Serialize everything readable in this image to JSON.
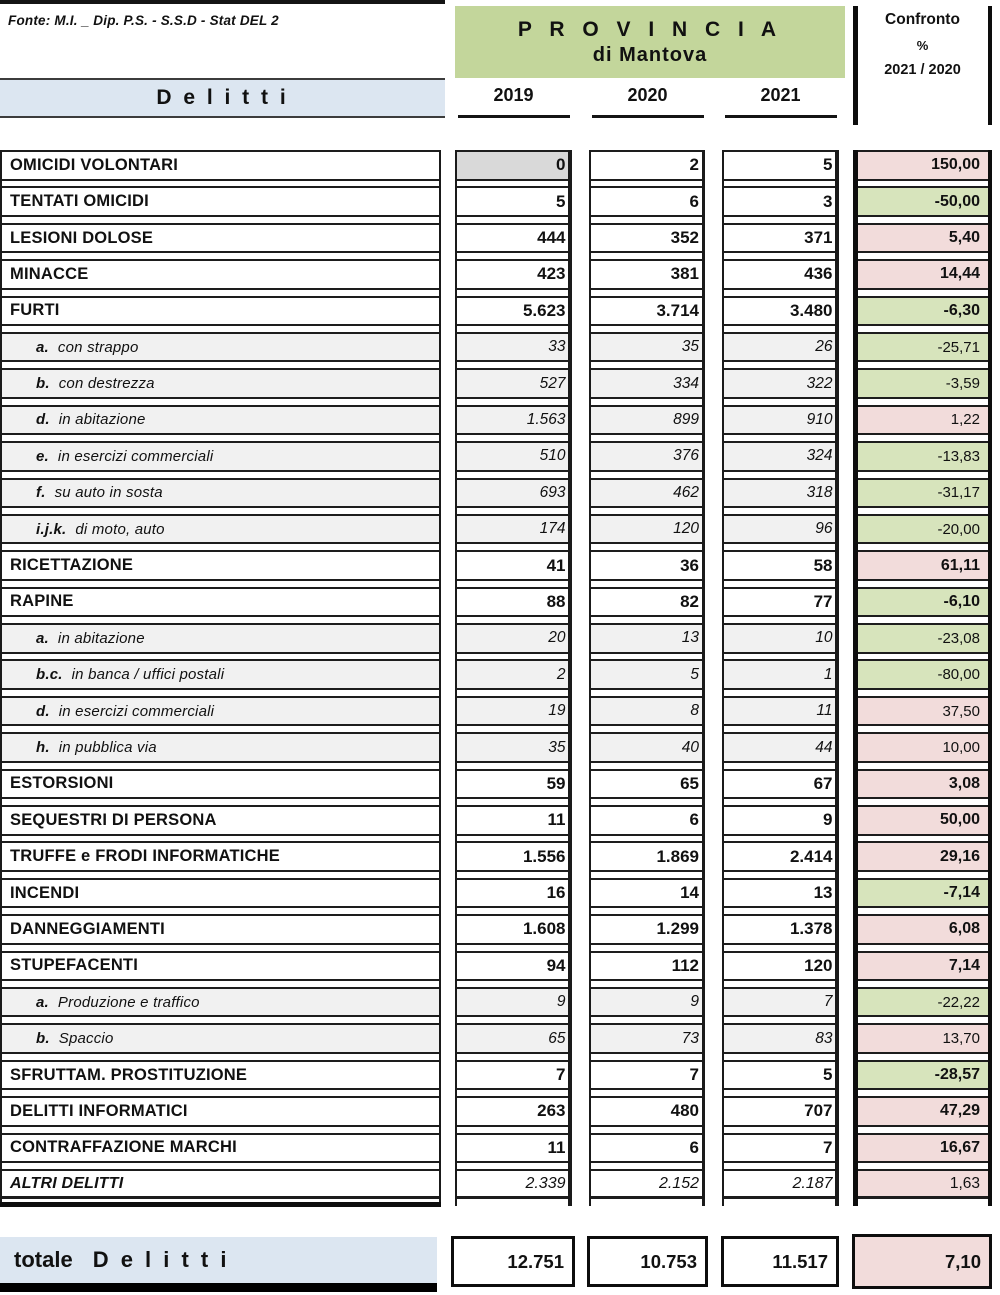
{
  "source_note": "Fonte: M.I. _ Dip. P.S. - S.S.D - Stat DEL 2",
  "header": {
    "delitti_label": "D e l i t t i",
    "province_line1": "P R O V I N C I A",
    "province_line2": "di Mantova",
    "years": [
      "2019",
      "2020",
      "2021"
    ],
    "confronto": {
      "line1": "Confronto",
      "line2": "%",
      "line3": "2021 / 2020"
    }
  },
  "colors": {
    "province_green": "#c3d69b",
    "band_blue": "#dce6f1",
    "increase_pink": "#f2dcdb",
    "decrease_green": "#d7e4bc",
    "zero_gray": "#d9d9d9",
    "subrow_gray": "#f1f1f1"
  },
  "table": {
    "rows": [
      {
        "label": "OMICIDI VOLONTARI",
        "values": [
          "0",
          "2",
          "5"
        ],
        "pct": "150,00",
        "pct_color": "pink",
        "gray_2019": true
      },
      {
        "label": "TENTATI OMICIDI",
        "values": [
          "5",
          "6",
          "3"
        ],
        "pct": "-50,00",
        "pct_color": "green"
      },
      {
        "label": "LESIONI DOLOSE",
        "values": [
          "444",
          "352",
          "371"
        ],
        "pct": "5,40",
        "pct_color": "pink"
      },
      {
        "label": "MINACCE",
        "values": [
          "423",
          "381",
          "436"
        ],
        "pct": "14,44",
        "pct_color": "pink"
      },
      {
        "label": "FURTI",
        "values": [
          "5.623",
          "3.714",
          "3.480"
        ],
        "pct": "-6,30",
        "pct_color": "green"
      },
      {
        "label": "con strappo",
        "prefix": "a.",
        "sub": true,
        "values": [
          "33",
          "35",
          "26"
        ],
        "pct": "-25,71",
        "pct_color": "green"
      },
      {
        "label": "con destrezza",
        "prefix": "b.",
        "sub": true,
        "values": [
          "527",
          "334",
          "322"
        ],
        "pct": "-3,59",
        "pct_color": "green"
      },
      {
        "label": "in abitazione",
        "prefix": "d.",
        "sub": true,
        "values": [
          "1.563",
          "899",
          "910"
        ],
        "pct": "1,22",
        "pct_color": "pink"
      },
      {
        "label": "in esercizi commerciali",
        "prefix": "e.",
        "sub": true,
        "values": [
          "510",
          "376",
          "324"
        ],
        "pct": "-13,83",
        "pct_color": "green"
      },
      {
        "label": "su auto in sosta",
        "prefix": "f.",
        "sub": true,
        "values": [
          "693",
          "462",
          "318"
        ],
        "pct": "-31,17",
        "pct_color": "green"
      },
      {
        "label": "di moto, auto",
        "prefix": "i.j.k.",
        "sub": true,
        "values": [
          "174",
          "120",
          "96"
        ],
        "pct": "-20,00",
        "pct_color": "green"
      },
      {
        "label": "RICETTAZIONE",
        "values": [
          "41",
          "36",
          "58"
        ],
        "pct": "61,11",
        "pct_color": "pink"
      },
      {
        "label": "RAPINE",
        "values": [
          "88",
          "82",
          "77"
        ],
        "pct": "-6,10",
        "pct_color": "green"
      },
      {
        "label": "in abitazione",
        "prefix": "a.",
        "sub": true,
        "values": [
          "20",
          "13",
          "10"
        ],
        "pct": "-23,08",
        "pct_color": "green"
      },
      {
        "label": "in banca / uffici postali",
        "prefix": "b.c.",
        "sub": true,
        "values": [
          "2",
          "5",
          "1"
        ],
        "pct": "-80,00",
        "pct_color": "green"
      },
      {
        "label": "in esercizi commerciali",
        "prefix": "d.",
        "sub": true,
        "values": [
          "19",
          "8",
          "11"
        ],
        "pct": "37,50",
        "pct_color": "pink"
      },
      {
        "label": "in pubblica via",
        "prefix": "h.",
        "sub": true,
        "values": [
          "35",
          "40",
          "44"
        ],
        "pct": "10,00",
        "pct_color": "pink"
      },
      {
        "label": "ESTORSIONI",
        "values": [
          "59",
          "65",
          "67"
        ],
        "pct": "3,08",
        "pct_color": "pink"
      },
      {
        "label": "SEQUESTRI DI PERSONA",
        "values": [
          "11",
          "6",
          "9"
        ],
        "pct": "50,00",
        "pct_color": "pink"
      },
      {
        "label": "TRUFFE e FRODI INFORMATICHE",
        "values": [
          "1.556",
          "1.869",
          "2.414"
        ],
        "pct": "29,16",
        "pct_color": "pink"
      },
      {
        "label": "INCENDI",
        "values": [
          "16",
          "14",
          "13"
        ],
        "pct": "-7,14",
        "pct_color": "green"
      },
      {
        "label": "DANNEGGIAMENTI",
        "values": [
          "1.608",
          "1.299",
          "1.378"
        ],
        "pct": "6,08",
        "pct_color": "pink"
      },
      {
        "label": "STUPEFACENTI",
        "values": [
          "94",
          "112",
          "120"
        ],
        "pct": "7,14",
        "pct_color": "pink"
      },
      {
        "label": "Produzione e traffico",
        "prefix": "a.",
        "sub": true,
        "values": [
          "9",
          "9",
          "7"
        ],
        "pct": "-22,22",
        "pct_color": "green"
      },
      {
        "label": "Spaccio",
        "prefix": "b.",
        "sub": true,
        "values": [
          "65",
          "73",
          "83"
        ],
        "pct": "13,70",
        "pct_color": "pink"
      },
      {
        "label": "SFRUTTAM. PROSTITUZIONE",
        "values": [
          "7",
          "7",
          "5"
        ],
        "pct": "-28,57",
        "pct_color": "green"
      },
      {
        "label": "DELITTI INFORMATICI",
        "values": [
          "263",
          "480",
          "707"
        ],
        "pct": "47,29",
        "pct_color": "pink"
      },
      {
        "label": "CONTRAFFAZIONE MARCHI",
        "values": [
          "11",
          "6",
          "7"
        ],
        "pct": "16,67",
        "pct_color": "pink"
      },
      {
        "label": "ALTRI DELITTI",
        "italic": true,
        "values": [
          "2.339",
          "2.152",
          "2.187"
        ],
        "pct": "1,63",
        "pct_color": "pink"
      }
    ]
  },
  "total": {
    "label_word": "totale",
    "label_delitti": "D e l i t t i",
    "values": [
      "12.751",
      "10.753",
      "11.517"
    ],
    "pct": "7,10",
    "pct_color": "pink"
  }
}
